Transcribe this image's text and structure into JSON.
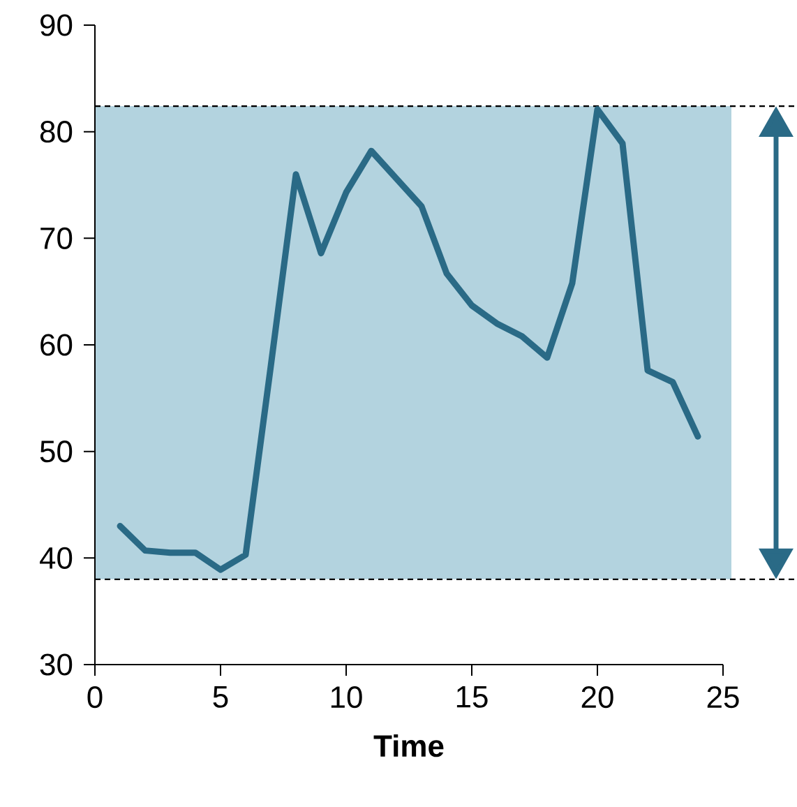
{
  "chart_data": {
    "type": "line",
    "xlabel": "Time",
    "x": [
      1,
      2,
      3,
      4,
      5,
      6,
      7,
      8,
      9,
      10,
      11,
      12,
      13,
      14,
      15,
      16,
      17,
      18,
      19,
      20,
      21,
      22,
      23,
      24
    ],
    "series": [
      {
        "color": "#2a6a86",
        "values": [
          43,
          40.7,
          40.5,
          40.5,
          38.9,
          40.3,
          58,
          76,
          68.6,
          74.3,
          78.2,
          75.6,
          73,
          66.7,
          63.7,
          62,
          60.8,
          58.8,
          65.8,
          82.1,
          78.9,
          57.6,
          56.5,
          51.4
        ]
      }
    ],
    "xlim": [
      0,
      25
    ],
    "xticks": [
      0,
      5,
      10,
      15,
      20,
      25
    ],
    "ylim": [
      30,
      90
    ],
    "yticks": [
      30,
      40,
      50,
      60,
      70,
      80,
      90
    ],
    "bands": [
      {
        "axis": "y",
        "from": 38,
        "to": 82.4,
        "color": "#b3d3df"
      }
    ],
    "ref_lines": [
      {
        "axis": "y",
        "value": 38,
        "line_style": "dashed",
        "color": "#000000"
      },
      {
        "axis": "y",
        "value": 82.4,
        "line_style": "dashed",
        "color": "#000000"
      }
    ]
  }
}
